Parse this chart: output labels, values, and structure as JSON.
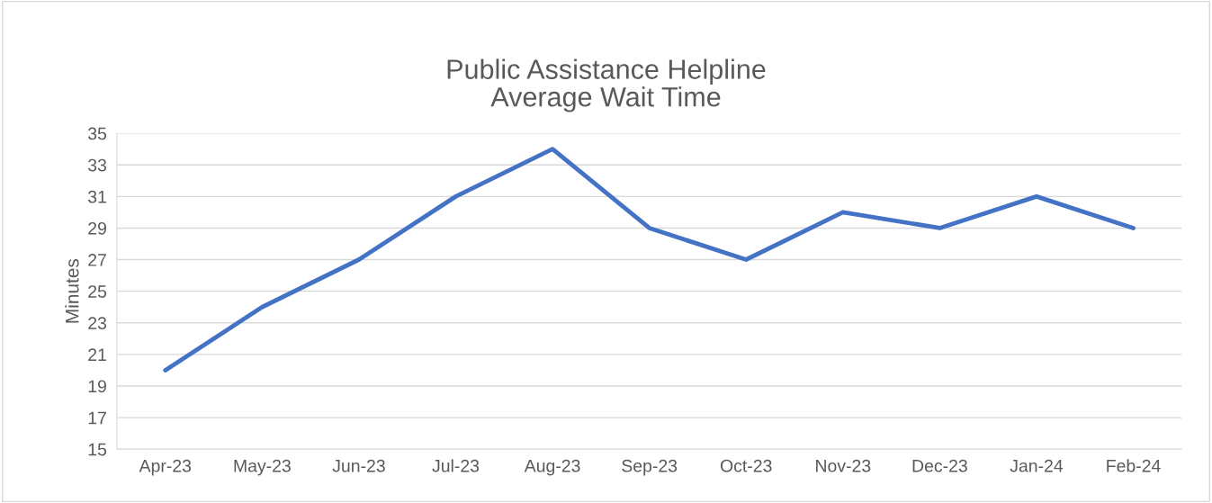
{
  "chart_data": {
    "type": "line",
    "title": "Public Assistance Helpline\nAverage Wait Time",
    "ylabel": "Minutes",
    "categories": [
      "Apr-23",
      "May-23",
      "Jun-23",
      "Jul-23",
      "Aug-23",
      "Sep-23",
      "Oct-23",
      "Nov-23",
      "Dec-23",
      "Jan-24",
      "Feb-24"
    ],
    "series": [
      {
        "color": "#4472c4",
        "values": [
          20,
          24,
          27,
          31,
          34,
          29,
          27,
          30,
          29,
          31,
          29
        ]
      }
    ],
    "ylim": [
      15,
      35
    ],
    "yticks": [
      15,
      17,
      19,
      21,
      23,
      25,
      27,
      29,
      31,
      33,
      35
    ],
    "grid": "y",
    "marker": "none",
    "line_style": "solid"
  }
}
